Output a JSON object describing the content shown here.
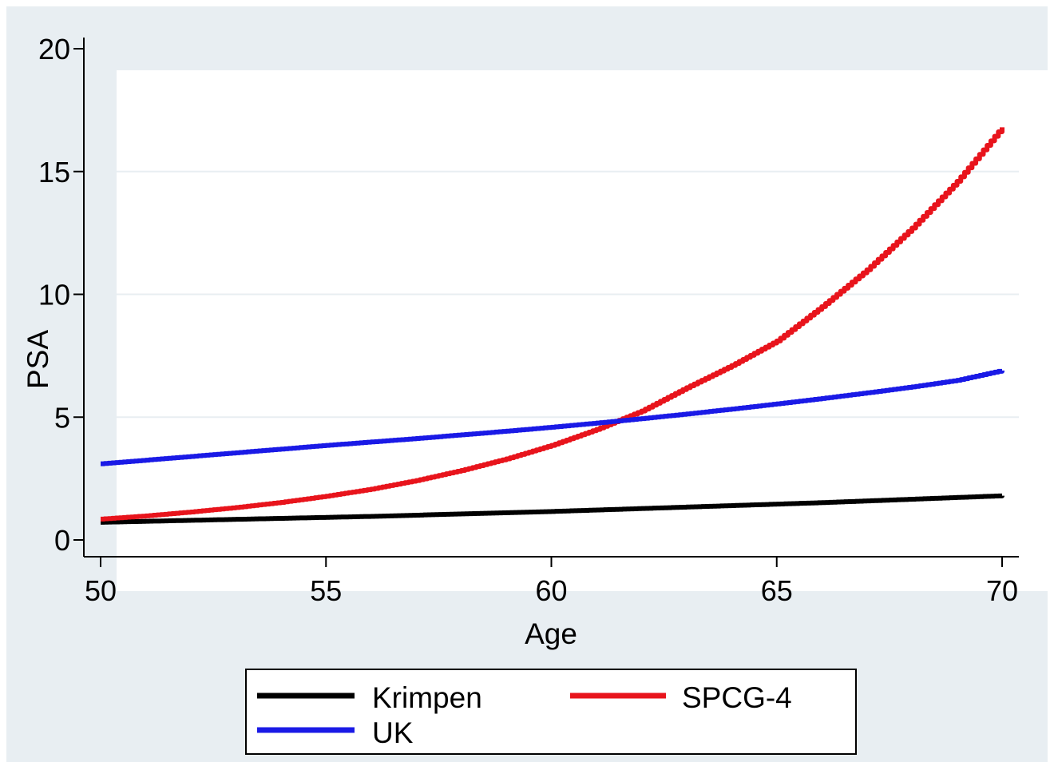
{
  "chart_data": {
    "type": "line",
    "title": "",
    "xlabel": "Age",
    "ylabel": "PSA",
    "xlim": [
      50,
      70
    ],
    "ylim": [
      0,
      20
    ],
    "xticks": [
      50,
      55,
      60,
      65,
      70
    ],
    "yticks": [
      0,
      5,
      10,
      15,
      20
    ],
    "x_tick_labels": [
      "50",
      "55",
      "60",
      "65",
      "70"
    ],
    "y_tick_labels": [
      "0",
      "5",
      "10",
      "15",
      "20"
    ],
    "grid": "horizontal",
    "legend_position": "bottom",
    "x": [
      50,
      51,
      52,
      53,
      54,
      55,
      56,
      57,
      58,
      59,
      60,
      61,
      62,
      63,
      64,
      65,
      66,
      67,
      68,
      69,
      70
    ],
    "series": [
      {
        "name": "Krimpen",
        "color": "#000000",
        "values": [
          0.72,
          0.76,
          0.8,
          0.84,
          0.88,
          0.92,
          0.96,
          1.01,
          1.06,
          1.11,
          1.16,
          1.22,
          1.28,
          1.34,
          1.4,
          1.46,
          1.52,
          1.59,
          1.66,
          1.73,
          1.8
        ]
      },
      {
        "name": "SPCG-4",
        "color": "#e8141c",
        "values": [
          0.85,
          0.98,
          1.14,
          1.32,
          1.53,
          1.78,
          2.07,
          2.42,
          2.83,
          3.3,
          3.85,
          4.5,
          5.25,
          6.2,
          7.1,
          8.1,
          9.5,
          11.0,
          12.7,
          14.6,
          16.8
        ]
      },
      {
        "name": "UK",
        "color": "#1a1ae6",
        "values": [
          3.1,
          3.25,
          3.4,
          3.55,
          3.7,
          3.85,
          3.99,
          4.13,
          4.28,
          4.43,
          4.59,
          4.76,
          4.94,
          5.13,
          5.33,
          5.54,
          5.76,
          5.99,
          6.23,
          6.5,
          6.9
        ]
      }
    ]
  },
  "colors": {
    "outer_background": "#e8eef2",
    "plot_background": "#ffffff",
    "gridline": "#e8eef2"
  }
}
